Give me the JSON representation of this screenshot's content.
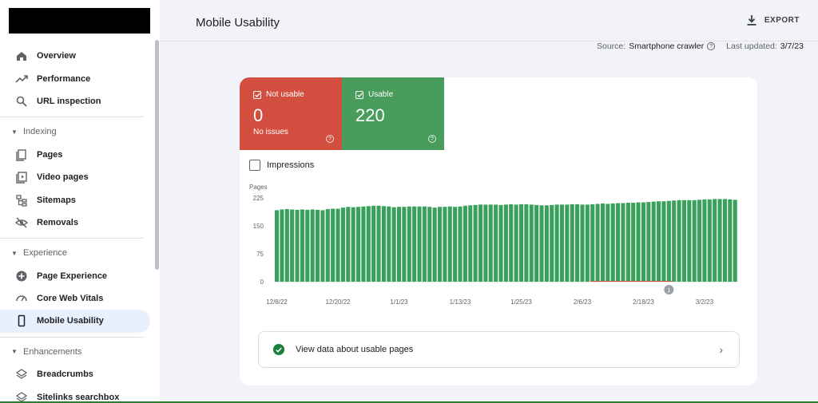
{
  "sidebar": {
    "items": [
      {
        "type": "item",
        "label": "Overview",
        "icon": "home-icon"
      },
      {
        "type": "item",
        "label": "Performance",
        "icon": "trending-up-icon"
      },
      {
        "type": "item",
        "label": "URL inspection",
        "icon": "search-icon"
      },
      {
        "type": "section",
        "label": "Indexing"
      },
      {
        "type": "item",
        "label": "Pages",
        "icon": "pages-icon"
      },
      {
        "type": "item",
        "label": "Video pages",
        "icon": "video-pages-icon"
      },
      {
        "type": "item",
        "label": "Sitemaps",
        "icon": "sitemap-icon"
      },
      {
        "type": "item",
        "label": "Removals",
        "icon": "removals-icon"
      },
      {
        "type": "section",
        "label": "Experience"
      },
      {
        "type": "item",
        "label": "Page Experience",
        "icon": "page-experience-icon"
      },
      {
        "type": "item",
        "label": "Core Web Vitals",
        "icon": "gauge-icon"
      },
      {
        "type": "item",
        "label": "Mobile Usability",
        "icon": "smartphone-icon",
        "active": true
      },
      {
        "type": "section",
        "label": "Enhancements"
      },
      {
        "type": "item",
        "label": "Breadcrumbs",
        "icon": "layers-icon"
      },
      {
        "type": "item",
        "label": "Sitelinks searchbox",
        "icon": "layers-icon"
      }
    ]
  },
  "header": {
    "title": "Mobile Usability",
    "export_label": "EXPORT"
  },
  "source": {
    "source_label": "Source:",
    "source_value": "Smartphone crawler",
    "updated_label": "Last updated:",
    "updated_value": "3/7/23"
  },
  "tiles": {
    "not_usable": {
      "label": "Not usable",
      "value": "0",
      "sub": "No issues",
      "color": "#d24f3f"
    },
    "usable": {
      "label": "Usable",
      "value": "220",
      "color": "#489c5c"
    }
  },
  "impressions_label": "Impressions",
  "chart_data": {
    "type": "bar",
    "ylabel": "Pages",
    "ylim": [
      0,
      225
    ],
    "yticks": [
      0,
      75,
      150,
      225
    ],
    "xtick_labels": [
      "12/8/22",
      "12/20/22",
      "1/1/23",
      "1/13/23",
      "1/25/23",
      "2/6/23",
      "2/18/23",
      "3/2/23"
    ],
    "xtick_index": [
      0,
      12,
      24,
      36,
      48,
      60,
      72,
      84
    ],
    "series": [
      {
        "color": "#3aa15c",
        "values": [
          192,
          194,
          195,
          194,
          193,
          194,
          193,
          194,
          193,
          192,
          195,
          196,
          196,
          199,
          201,
          200,
          201,
          202,
          203,
          204,
          204,
          203,
          202,
          200,
          201,
          201,
          202,
          202,
          202,
          202,
          201,
          199,
          201,
          201,
          202,
          201,
          202,
          204,
          205,
          206,
          207,
          207,
          207,
          207,
          206,
          207,
          208,
          207,
          208,
          208,
          207,
          206,
          205,
          205,
          206,
          207,
          207,
          207,
          208,
          208,
          207,
          207,
          208,
          209,
          210,
          209,
          210,
          211,
          211,
          212,
          212,
          213,
          213,
          214,
          215,
          216,
          216,
          217,
          218,
          219,
          219,
          219,
          219,
          220,
          221,
          221,
          222,
          222,
          222,
          221,
          220
        ]
      }
    ],
    "annotation": {
      "label": "1",
      "x_index": 77
    }
  },
  "view_row": {
    "label": "View data about usable pages"
  }
}
